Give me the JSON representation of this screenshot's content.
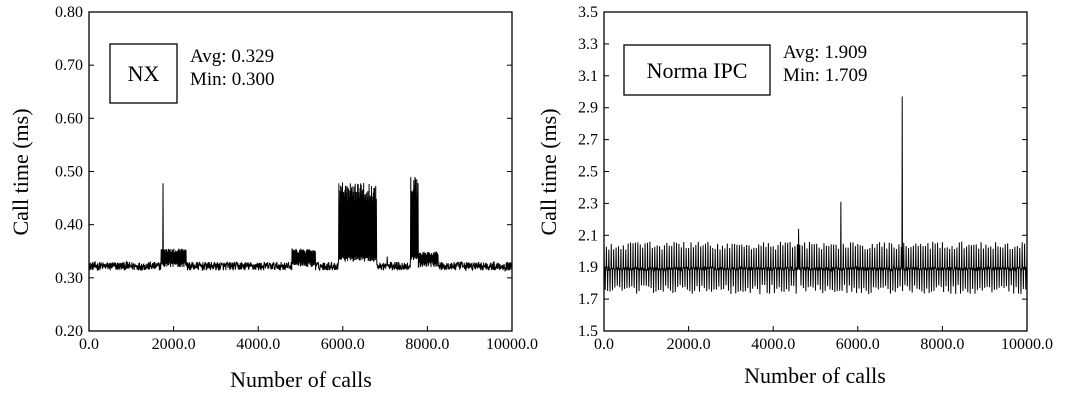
{
  "chart_data": [
    {
      "type": "line",
      "title": "",
      "xlabel": "Number of calls",
      "ylabel": "Call time (ms)",
      "xlim": [
        0,
        10000
      ],
      "ylim": [
        0.2,
        0.8
      ],
      "x_ticks": [
        0,
        2000,
        4000,
        6000,
        8000,
        10000
      ],
      "x_tick_labels": [
        "0.0",
        "2000.0",
        "4000.0",
        "6000.0",
        "8000.0",
        "10000.0"
      ],
      "y_ticks": [
        0.2,
        0.3,
        0.4,
        0.5,
        0.6,
        0.7,
        0.8
      ],
      "y_tick_labels": [
        "0.20",
        "0.30",
        "0.40",
        "0.50",
        "0.60",
        "0.70",
        "0.80"
      ],
      "grid": false,
      "legend_box": "NX",
      "annotations": [
        "Avg: 0.329",
        "Min: 0.300"
      ],
      "series": [
        {
          "baseline": 0.322,
          "noise": 0.008,
          "spikes": [
            [
              1750,
              0.478
            ],
            [
              1900,
              0.352
            ],
            [
              4800,
              0.355
            ],
            [
              7050,
              0.34
            ]
          ],
          "bursts": [
            {
              "from": 1700,
              "to": 2300,
              "low": 0.32,
              "high": 0.355
            },
            {
              "from": 4800,
              "to": 5350,
              "low": 0.32,
              "high": 0.355
            },
            {
              "from": 5900,
              "to": 6800,
              "low": 0.33,
              "high": 0.48
            },
            {
              "from": 7600,
              "to": 7780,
              "low": 0.33,
              "high": 0.49
            },
            {
              "from": 7800,
              "to": 8250,
              "low": 0.32,
              "high": 0.35
            }
          ],
          "min": 0.3
        }
      ]
    },
    {
      "type": "line",
      "title": "",
      "xlabel": "Number of calls",
      "ylabel": "Call time (ms)",
      "xlim": [
        0,
        10000
      ],
      "ylim": [
        1.5,
        3.5
      ],
      "x_ticks": [
        0,
        2000,
        4000,
        6000,
        8000,
        10000
      ],
      "x_tick_labels": [
        "0.0",
        "2000.0",
        "4000.0",
        "6000.0",
        "8000.0",
        "10000.0"
      ],
      "y_ticks": [
        1.5,
        1.7,
        1.9,
        2.1,
        2.3,
        2.5,
        2.7,
        2.9,
        3.1,
        3.3,
        3.5
      ],
      "y_tick_labels": [
        "1.5",
        "1.7",
        "1.9",
        "2.1",
        "2.3",
        "2.5",
        "2.7",
        "2.9",
        "3.1",
        "3.3",
        "3.5"
      ],
      "grid": false,
      "legend_box": "Norma IPC",
      "annotations": [
        "Avg: 1.909",
        "Min: 1.709"
      ],
      "series": [
        {
          "baseline": 1.89,
          "noise": 0.012,
          "periodic_high": 2.06,
          "periodic_low": 1.73,
          "spikes": [
            [
              4600,
              2.14
            ],
            [
              5600,
              2.31
            ],
            [
              7050,
              2.97
            ]
          ],
          "min": 1.709
        }
      ]
    }
  ]
}
